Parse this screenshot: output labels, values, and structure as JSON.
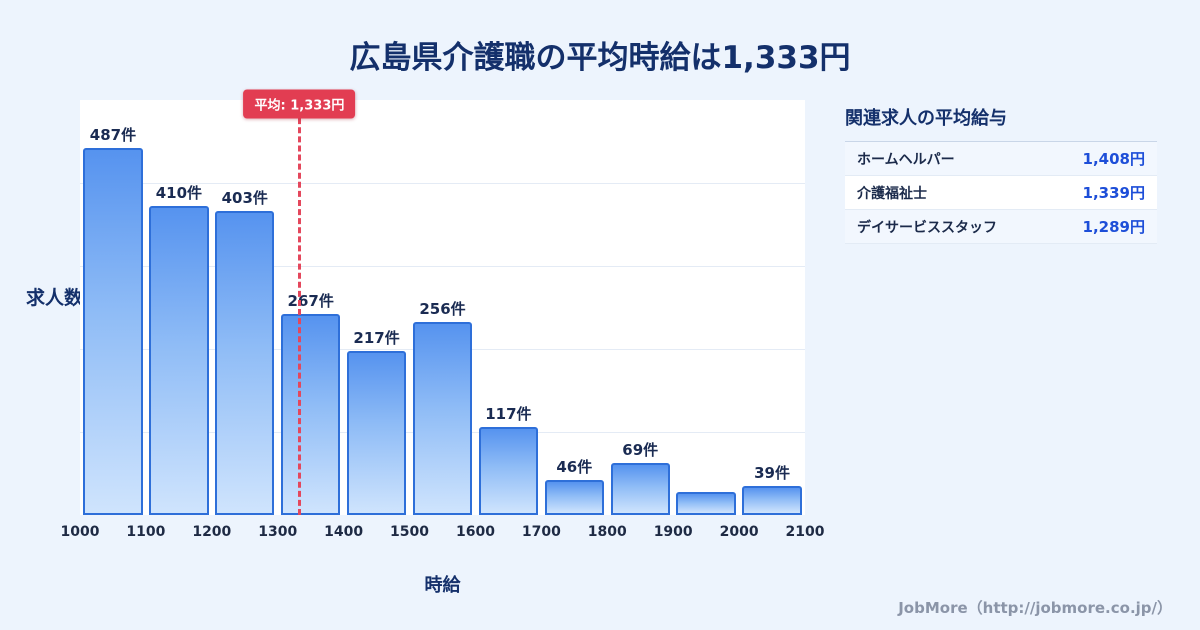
{
  "title": "広島県介護職の平均時給は1,333円",
  "chart_data": {
    "type": "bar",
    "title": "広島県介護職の平均時給は1,333円",
    "xlabel": "時給",
    "ylabel": "求人数",
    "bin_edges": [
      1000,
      1100,
      1200,
      1300,
      1400,
      1500,
      1600,
      1700,
      1800,
      1900,
      2000,
      2100
    ],
    "values": [
      487,
      410,
      403,
      267,
      217,
      256,
      117,
      46,
      69,
      30,
      39
    ],
    "bar_labels": [
      "487件",
      "410件",
      "403件",
      "267件",
      "217件",
      "256件",
      "117件",
      "46件",
      "69件",
      "",
      "39件"
    ],
    "ylim": [
      0,
      550
    ],
    "grid": true,
    "average": {
      "value": 1333,
      "label": "平均: 1,333円"
    },
    "colors": {
      "bar_top": "#5693ef",
      "bar_bottom": "#cfe4fd",
      "bar_border": "#2e6fd9",
      "average_line": "#e4475c",
      "title_text": "#14306b"
    }
  },
  "panel": {
    "title": "関連求人の平均給与",
    "rows": [
      {
        "label": "ホームヘルパー",
        "value": "1,408円"
      },
      {
        "label": "介護福祉士",
        "value": "1,339円"
      },
      {
        "label": "デイサービススタッフ",
        "value": "1,289円"
      }
    ]
  },
  "footer": {
    "text": "JobMore（http://jobmore.co.jp/）"
  }
}
